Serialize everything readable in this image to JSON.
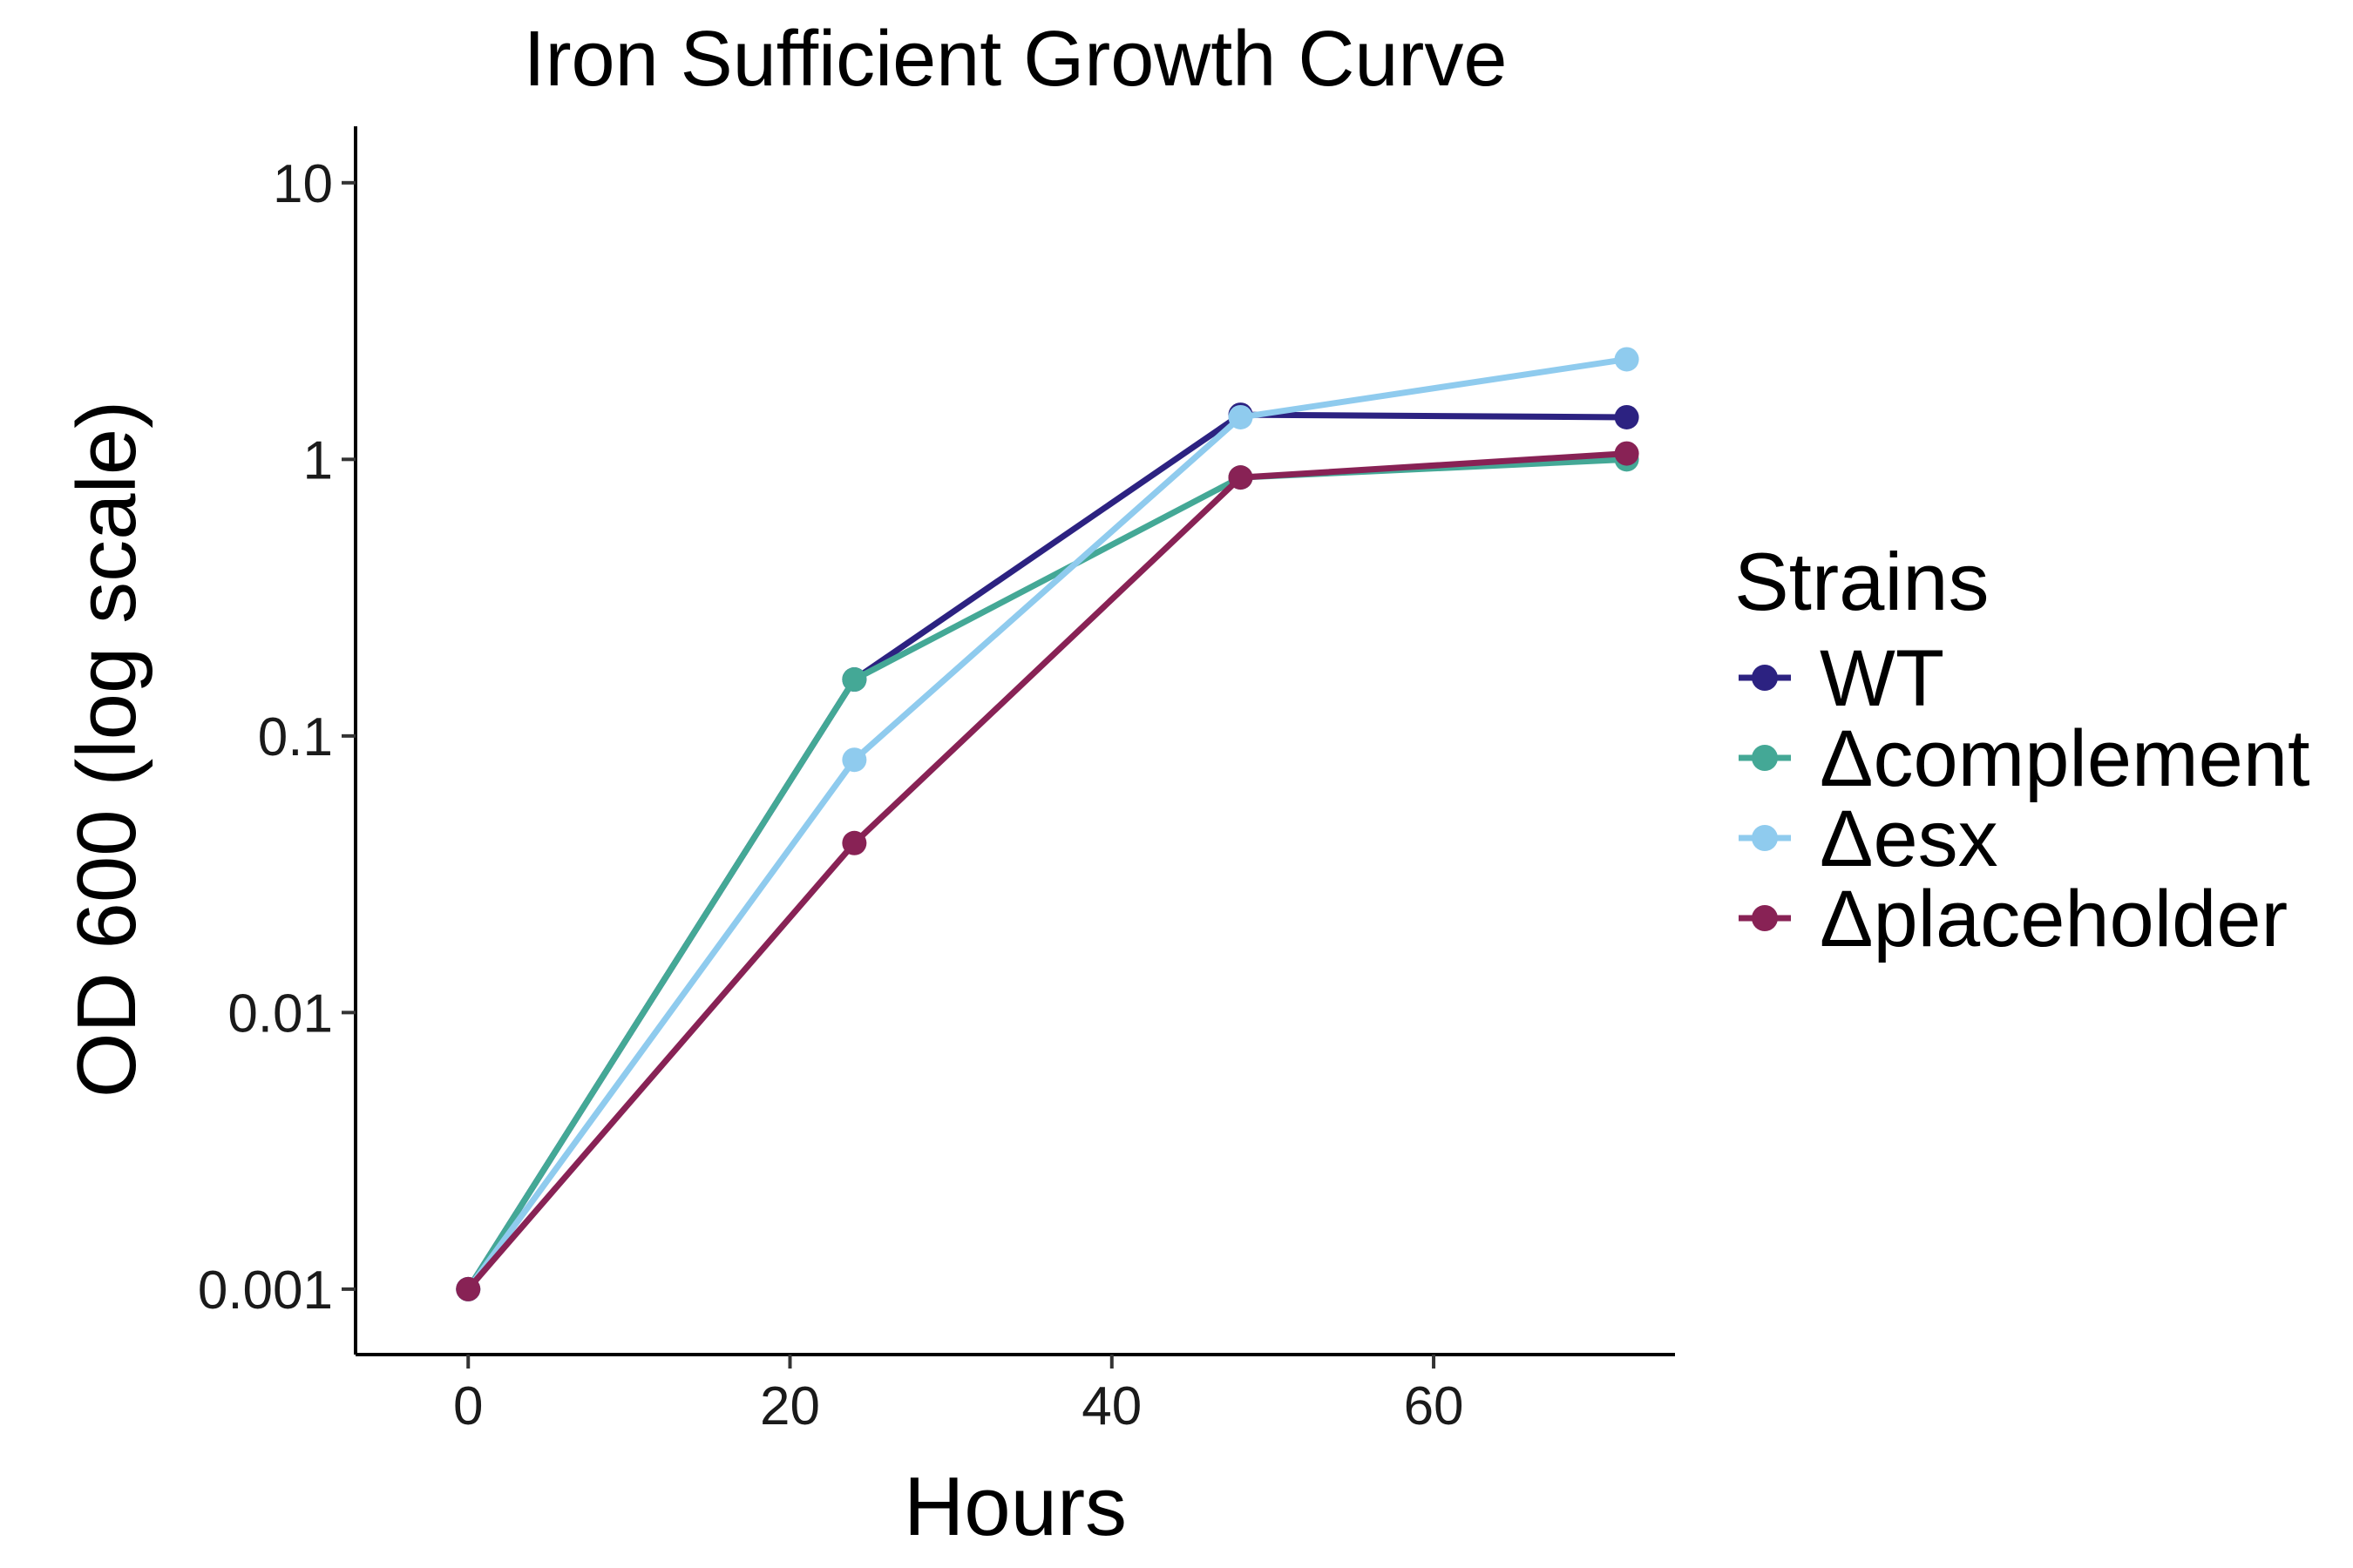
{
  "chart_data": {
    "type": "line",
    "title": "Iron Sufficient Growth Curve",
    "xlabel": "Hours",
    "ylabel": "OD 600 (log scale)",
    "xlim": [
      -7,
      75
    ],
    "ylim": [
      0.00058,
      16
    ],
    "y_scale": "log",
    "x_ticks": [
      0,
      20,
      40,
      60
    ],
    "x_tick_labels": [
      "0",
      "20",
      "40",
      "60"
    ],
    "y_ticks": [
      0.001,
      0.01,
      0.1,
      1,
      10
    ],
    "y_tick_labels": [
      "0.001",
      "0.01",
      "0.1",
      "1",
      "10"
    ],
    "grid": false,
    "legend": {
      "title": "Strains",
      "position": "right"
    },
    "series": [
      {
        "name": "WT",
        "color": "#2c2281",
        "x": [
          0,
          24,
          48,
          72
        ],
        "y": [
          0.001,
          0.16,
          1.45,
          1.42
        ]
      },
      {
        "name": "Δcomplement",
        "color": "#44a896",
        "x": [
          0,
          24,
          48,
          72
        ],
        "y": [
          0.001,
          0.16,
          0.86,
          1.0
        ]
      },
      {
        "name": "Δesx",
        "color": "#8fcbee",
        "x": [
          0,
          24,
          48,
          72
        ],
        "y": [
          0.001,
          0.082,
          1.42,
          2.3
        ]
      },
      {
        "name": "Δplaceholder",
        "color": "#882255",
        "x": [
          0,
          24,
          48,
          72
        ],
        "y": [
          0.001,
          0.041,
          0.86,
          1.05
        ]
      }
    ]
  }
}
